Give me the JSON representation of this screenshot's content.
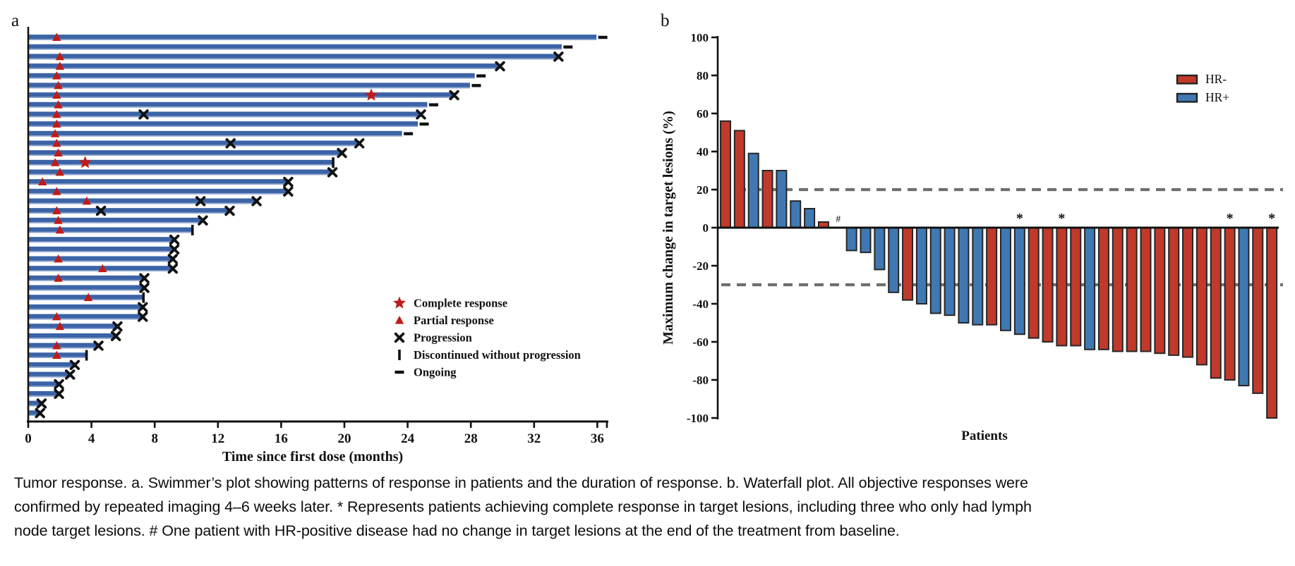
{
  "figure": {
    "panel_a_label": "a",
    "panel_b_label": "b",
    "caption_lines": [
      "Tumor response. a. Swimmer’s plot showing patterns of response in patients and the duration of response. b. Waterfall plot. All objective responses were",
      "confirmed by repeated imaging 4–6 weeks later. * Represents patients achieving complete response in target lesions, including three who only had lymph",
      "node target lesions. # One patient with HR-positive disease had no change in target lesions at the end of the treatment from baseline."
    ]
  },
  "chart_data": [
    {
      "id": "swimmer",
      "type": "bar",
      "orientation": "horizontal",
      "xlabel": "Time since first dose (months)",
      "xlim": [
        0,
        37
      ],
      "xticks": [
        0,
        4,
        8,
        12,
        16,
        20,
        24,
        28,
        32,
        36
      ],
      "grid": false,
      "bar_color": "#3b63a6",
      "bar_edge_color": "#8fa6cf",
      "marker_red": "#c11b17",
      "marker_black": "#111111",
      "legend_position": "center-right",
      "legend": [
        {
          "marker": "star",
          "label": "Complete response"
        },
        {
          "marker": "triangle",
          "label": "Partial response"
        },
        {
          "marker": "x",
          "label": "Progression"
        },
        {
          "marker": "vbar",
          "label": "Discontinued without progression"
        },
        {
          "marker": "dash",
          "label": "Ongoing"
        }
      ],
      "patients": [
        {
          "duration": 35.9,
          "partial_response_at": 1.8,
          "end": "ongoing"
        },
        {
          "duration": 33.7,
          "partial_response_at": null,
          "end": "ongoing"
        },
        {
          "duration": 33.5,
          "partial_response_at": 2.0,
          "end": "progression"
        },
        {
          "duration": 29.8,
          "partial_response_at": 2.0,
          "end": "progression"
        },
        {
          "duration": 28.2,
          "partial_response_at": 1.8,
          "end": "ongoing"
        },
        {
          "duration": 27.9,
          "partial_response_at": 1.9,
          "end": "ongoing"
        },
        {
          "duration": 26.9,
          "partial_response_at": 1.8,
          "complete_response_at": 21.7,
          "end": "progression"
        },
        {
          "duration": 25.2,
          "partial_response_at": 1.9,
          "end": "ongoing"
        },
        {
          "duration": 24.8,
          "partial_response_at": 1.8,
          "progression_at": [
            7.3
          ],
          "end": "progression"
        },
        {
          "duration": 24.6,
          "partial_response_at": 1.8,
          "end": "ongoing"
        },
        {
          "duration": 23.6,
          "partial_response_at": 1.7,
          "end": "ongoing"
        },
        {
          "duration": 20.9,
          "partial_response_at": 1.8,
          "progression_at": [
            12.8
          ],
          "end": "progression"
        },
        {
          "duration": 19.8,
          "partial_response_at": 1.9,
          "end": "progression"
        },
        {
          "duration": 19.2,
          "partial_response_at": 1.7,
          "complete_response_at": 3.6,
          "end": "discontinued"
        },
        {
          "duration": 19.2,
          "partial_response_at": 2.0,
          "end": "progression"
        },
        {
          "duration": 16.4,
          "partial_response_at": 0.9,
          "end": "progression"
        },
        {
          "duration": 16.4,
          "partial_response_at": 1.8,
          "end": "progression"
        },
        {
          "duration": 14.4,
          "partial_response_at": 3.7,
          "progression_at": [
            10.9
          ],
          "end": "progression"
        },
        {
          "duration": 12.7,
          "partial_response_at": 1.8,
          "progression_at": [
            4.6
          ],
          "end": "progression"
        },
        {
          "duration": 11.0,
          "partial_response_at": 1.9,
          "end": "progression"
        },
        {
          "duration": 10.3,
          "partial_response_at": 2.0,
          "end": "discontinued"
        },
        {
          "duration": 9.2,
          "partial_response_at": null,
          "end": "progression"
        },
        {
          "duration": 9.2,
          "partial_response_at": null,
          "end": "progression"
        },
        {
          "duration": 9.1,
          "partial_response_at": 1.9,
          "end": "progression"
        },
        {
          "duration": 9.1,
          "partial_response_at": 4.7,
          "end": "progression"
        },
        {
          "duration": 7.3,
          "partial_response_at": 1.9,
          "end": "progression"
        },
        {
          "duration": 7.3,
          "partial_response_at": null,
          "end": "progression"
        },
        {
          "duration": 7.2,
          "partial_response_at": 3.8,
          "end": "discontinued"
        },
        {
          "duration": 7.2,
          "partial_response_at": null,
          "end": "progression"
        },
        {
          "duration": 7.2,
          "partial_response_at": 1.8,
          "end": "progression"
        },
        {
          "duration": 5.6,
          "partial_response_at": 2.0,
          "end": "progression"
        },
        {
          "duration": 5.5,
          "partial_response_at": null,
          "end": "progression"
        },
        {
          "duration": 4.4,
          "partial_response_at": 1.8,
          "end": "progression"
        },
        {
          "duration": 3.6,
          "partial_response_at": 1.8,
          "end": "discontinued"
        },
        {
          "duration": 2.9,
          "partial_response_at": null,
          "end": "progression"
        },
        {
          "duration": 2.6,
          "partial_response_at": null,
          "end": "progression"
        },
        {
          "duration": 1.9,
          "partial_response_at": null,
          "end": "progression"
        },
        {
          "duration": 1.9,
          "partial_response_at": null,
          "end": "progression"
        },
        {
          "duration": 0.8,
          "partial_response_at": null,
          "end": "progression"
        },
        {
          "duration": 0.7,
          "partial_response_at": null,
          "end": "progression"
        }
      ]
    },
    {
      "id": "waterfall",
      "type": "bar",
      "ylabel": "Maximum change in target lesions (%)",
      "xlabel": "Patients",
      "ylim": [
        -100,
        100
      ],
      "yticks": [
        100,
        80,
        60,
        40,
        20,
        0,
        -20,
        -40,
        -60,
        -80,
        -100
      ],
      "reference_lines": [
        20,
        -30
      ],
      "reference_line_color": "#6f6f6f",
      "grid": false,
      "legend_position": "top-right",
      "legend": [
        {
          "label": "HR-",
          "color": "#c03a2b"
        },
        {
          "label": "HR+",
          "color": "#4079b2"
        }
      ],
      "group_colors": {
        "HR-": "#c03a2b",
        "HR+": "#4079b2"
      },
      "bar_border_color": "#262626",
      "bars": [
        {
          "value": 56,
          "group": "HR-"
        },
        {
          "value": 51,
          "group": "HR-"
        },
        {
          "value": 39,
          "group": "HR+"
        },
        {
          "value": 30,
          "group": "HR-"
        },
        {
          "value": 30,
          "group": "HR+"
        },
        {
          "value": 14,
          "group": "HR+"
        },
        {
          "value": 10,
          "group": "HR+"
        },
        {
          "value": 3,
          "group": "HR-"
        },
        {
          "value": 0,
          "group": "HR+",
          "annotation": "#"
        },
        {
          "value": -12,
          "group": "HR+"
        },
        {
          "value": -13,
          "group": "HR+"
        },
        {
          "value": -22,
          "group": "HR+"
        },
        {
          "value": -34,
          "group": "HR+"
        },
        {
          "value": -38,
          "group": "HR-"
        },
        {
          "value": -40,
          "group": "HR+"
        },
        {
          "value": -45,
          "group": "HR+"
        },
        {
          "value": -46,
          "group": "HR+"
        },
        {
          "value": -50,
          "group": "HR+"
        },
        {
          "value": -51,
          "group": "HR+"
        },
        {
          "value": -51,
          "group": "HR-"
        },
        {
          "value": -54,
          "group": "HR+"
        },
        {
          "value": -56,
          "group": "HR+",
          "annotation": "*"
        },
        {
          "value": -58,
          "group": "HR-"
        },
        {
          "value": -60,
          "group": "HR-"
        },
        {
          "value": -62,
          "group": "HR-",
          "annotation": "*"
        },
        {
          "value": -62,
          "group": "HR-"
        },
        {
          "value": -64,
          "group": "HR+"
        },
        {
          "value": -64,
          "group": "HR-"
        },
        {
          "value": -65,
          "group": "HR-"
        },
        {
          "value": -65,
          "group": "HR-"
        },
        {
          "value": -65,
          "group": "HR-"
        },
        {
          "value": -66,
          "group": "HR-"
        },
        {
          "value": -67,
          "group": "HR-"
        },
        {
          "value": -68,
          "group": "HR-"
        },
        {
          "value": -72,
          "group": "HR-"
        },
        {
          "value": -79,
          "group": "HR-"
        },
        {
          "value": -80,
          "group": "HR-",
          "annotation": "*"
        },
        {
          "value": -83,
          "group": "HR+"
        },
        {
          "value": -87,
          "group": "HR-"
        },
        {
          "value": -100,
          "group": "HR-",
          "annotation": "*"
        }
      ]
    }
  ]
}
